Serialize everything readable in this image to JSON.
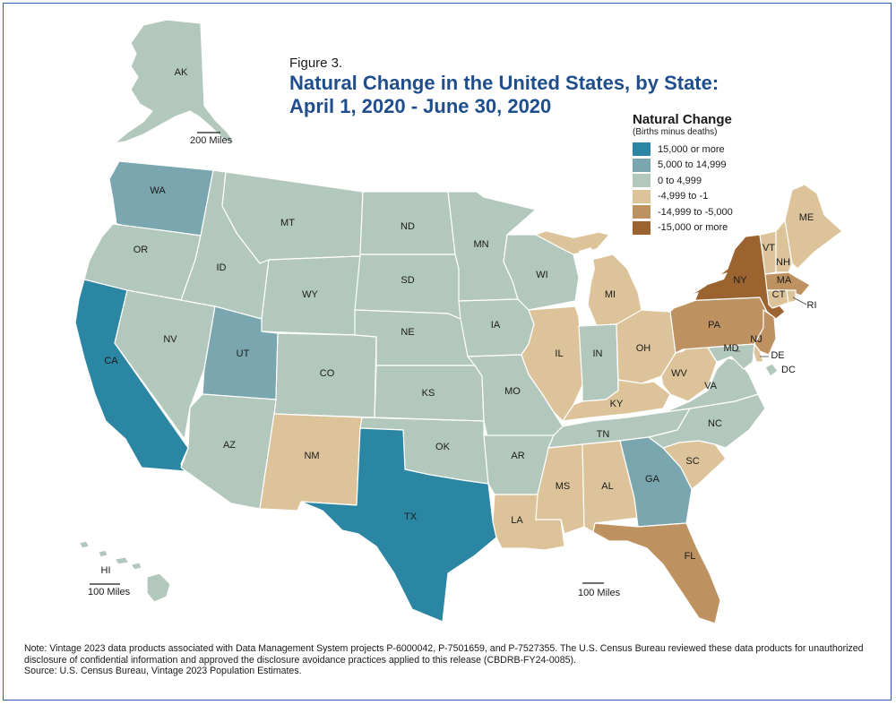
{
  "figure_label": "Figure 3.",
  "title_line1": "Natural Change in the United States, by State:",
  "title_line2": "April 1, 2020 - June 30, 2020",
  "legend": {
    "title": "Natural Change",
    "subtitle": "(Births minus deaths)",
    "items": [
      {
        "label": "15,000 or more",
        "color": "#2a86a2"
      },
      {
        "label": "5,000 to 14,999",
        "color": "#79a6af"
      },
      {
        "label": "0 to 4,999",
        "color": "#b3c8bd"
      },
      {
        "label": "-4,999 to -1",
        "color": "#dcc399"
      },
      {
        "label": "-14,999 to -5,000",
        "color": "#be9161"
      },
      {
        "label": "-15,000 or more",
        "color": "#9a6330"
      }
    ]
  },
  "states": [
    {
      "abbr": "AK",
      "category": 2
    },
    {
      "abbr": "HI",
      "category": 2
    },
    {
      "abbr": "WA",
      "category": 1
    },
    {
      "abbr": "OR",
      "category": 2
    },
    {
      "abbr": "CA",
      "category": 0
    },
    {
      "abbr": "NV",
      "category": 2
    },
    {
      "abbr": "ID",
      "category": 2
    },
    {
      "abbr": "MT",
      "category": 2
    },
    {
      "abbr": "WY",
      "category": 2
    },
    {
      "abbr": "UT",
      "category": 1
    },
    {
      "abbr": "CO",
      "category": 2
    },
    {
      "abbr": "AZ",
      "category": 2
    },
    {
      "abbr": "NM",
      "category": 3
    },
    {
      "abbr": "ND",
      "category": 2
    },
    {
      "abbr": "SD",
      "category": 2
    },
    {
      "abbr": "NE",
      "category": 2
    },
    {
      "abbr": "KS",
      "category": 2
    },
    {
      "abbr": "OK",
      "category": 2
    },
    {
      "abbr": "TX",
      "category": 0
    },
    {
      "abbr": "MN",
      "category": 2
    },
    {
      "abbr": "IA",
      "category": 2
    },
    {
      "abbr": "MO",
      "category": 2
    },
    {
      "abbr": "AR",
      "category": 2
    },
    {
      "abbr": "LA",
      "category": 3
    },
    {
      "abbr": "WI",
      "category": 2
    },
    {
      "abbr": "IL",
      "category": 3
    },
    {
      "abbr": "MI",
      "category": 3
    },
    {
      "abbr": "IN",
      "category": 2
    },
    {
      "abbr": "OH",
      "category": 3
    },
    {
      "abbr": "KY",
      "category": 3
    },
    {
      "abbr": "TN",
      "category": 2
    },
    {
      "abbr": "MS",
      "category": 3
    },
    {
      "abbr": "AL",
      "category": 3
    },
    {
      "abbr": "GA",
      "category": 1
    },
    {
      "abbr": "FL",
      "category": 4
    },
    {
      "abbr": "SC",
      "category": 3
    },
    {
      "abbr": "NC",
      "category": 2
    },
    {
      "abbr": "VA",
      "category": 2
    },
    {
      "abbr": "WV",
      "category": 3
    },
    {
      "abbr": "PA",
      "category": 4
    },
    {
      "abbr": "NY",
      "category": 5
    },
    {
      "abbr": "NJ",
      "category": 4
    },
    {
      "abbr": "DE",
      "category": 3
    },
    {
      "abbr": "MD",
      "category": 2
    },
    {
      "abbr": "DC",
      "category": 2
    },
    {
      "abbr": "CT",
      "category": 3
    },
    {
      "abbr": "RI",
      "category": 3
    },
    {
      "abbr": "MA",
      "category": 4
    },
    {
      "abbr": "VT",
      "category": 3
    },
    {
      "abbr": "NH",
      "category": 3
    },
    {
      "abbr": "ME",
      "category": 3
    }
  ],
  "scales": {
    "alaska": "200 Miles",
    "hawaii": "100 Miles",
    "mainland": "100 Miles"
  },
  "notes": {
    "note": "Note: Vintage 2023 data products associated with Data Management System projects P-6000042, P-7501659, and P-7527355. The U.S. Census Bureau reviewed these data products for unauthorized disclosure of confidential information and approved the disclosure avoidance practices applied to this release (CBDRB-FY24-0085).",
    "source": "Source: U.S. Census Bureau, Vintage 2023 Population Estimates."
  }
}
